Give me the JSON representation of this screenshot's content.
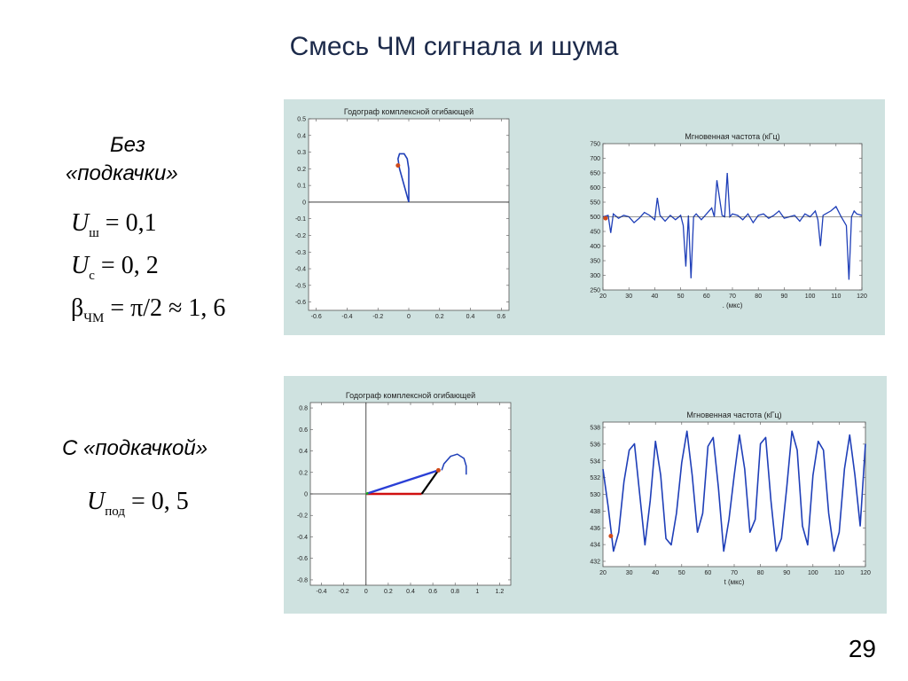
{
  "slide_title": "Смесь ЧМ сигнала и шума",
  "top_label_line1": "Без",
  "top_label_line2": "«подкачки»",
  "formula1": {
    "sym": "U",
    "sub": "ш",
    "rhs": "= 0,1"
  },
  "formula2": {
    "sym": "U",
    "sub": "с",
    "rhs": "= 0, 2"
  },
  "formula3": {
    "sym": "β",
    "sub": "ЧМ",
    "rhs": "= π/2 ≈ 1, 6"
  },
  "bottom_label": "С «подкачкой»",
  "formula4": {
    "sym": "U",
    "sub": "под",
    "rhs": "= 0, 5"
  },
  "page_number": "29",
  "colors": {
    "panel_bg": "#cfe2e0",
    "trace": "#1f3fb8",
    "marker": "#d04a1a",
    "vector_blue": "#2a3fd6",
    "vector_red": "#d01010",
    "vector_black": "#000000",
    "vector_green": "#18b018"
  },
  "chart_data": [
    {
      "type": "scatter",
      "title": "Годограф комплексной огибающей",
      "x_ticks": [
        "-0.6",
        "-0.4",
        "-0.2",
        "0",
        "0.2",
        "0.4",
        "0.6"
      ],
      "y_ticks": [
        "0.5",
        "0.4",
        "0.3",
        "0.2",
        "0.1",
        "0",
        "-0.1",
        "-0.2",
        "-0.3",
        "-0.4",
        "-0.5",
        "-0.6"
      ],
      "xlim": [
        -0.65,
        0.65
      ],
      "ylim": [
        -0.65,
        0.5
      ],
      "trajectory": [
        [
          0.0,
          0.0
        ],
        [
          -0.03,
          0.1
        ],
        [
          -0.06,
          0.2
        ],
        [
          -0.07,
          0.26
        ],
        [
          -0.06,
          0.29
        ],
        [
          -0.03,
          0.29
        ],
        [
          -0.01,
          0.26
        ],
        [
          0.0,
          0.2
        ],
        [
          0.0,
          0.12
        ],
        [
          0.0,
          0.0
        ]
      ],
      "marker": [
        -0.07,
        0.22
      ]
    },
    {
      "type": "line",
      "title": "Мгновенная частота (кГц)",
      "xlabel": ". (мкс)",
      "x_ticks": [
        "20",
        "30",
        "40",
        "50",
        "60",
        "70",
        "80",
        "90",
        "100",
        "110",
        "120"
      ],
      "y_ticks": [
        "750",
        "700",
        "650",
        "600",
        "550",
        "500",
        "450",
        "400",
        "350",
        "300",
        "250"
      ],
      "xlim": [
        20,
        120
      ],
      "ylim": [
        250,
        750
      ],
      "series": [
        {
          "x": [
            20,
            22,
            23,
            24,
            26,
            28,
            30,
            32,
            34,
            36,
            38,
            40,
            41,
            42,
            44,
            46,
            48,
            50,
            51,
            52,
            53,
            54,
            55,
            56,
            58,
            60,
            62,
            63,
            64,
            66,
            67,
            68,
            69,
            70,
            72,
            74,
            76,
            78,
            80,
            82,
            84,
            86,
            88,
            90,
            92,
            94,
            96,
            98,
            100,
            102,
            103,
            104,
            105,
            106,
            108,
            110,
            112,
            114,
            115,
            116,
            117,
            118,
            120
          ],
          "y": [
            500,
            505,
            445,
            510,
            495,
            505,
            500,
            480,
            495,
            515,
            505,
            490,
            565,
            505,
            485,
            505,
            490,
            505,
            470,
            330,
            505,
            290,
            500,
            510,
            490,
            510,
            530,
            500,
            625,
            505,
            500,
            650,
            500,
            510,
            505,
            490,
            510,
            480,
            505,
            510,
            495,
            505,
            520,
            495,
            500,
            505,
            485,
            510,
            500,
            520,
            490,
            400,
            505,
            510,
            520,
            535,
            500,
            470,
            285,
            500,
            520,
            510,
            505
          ]
        }
      ],
      "marker": [
        21,
        495
      ]
    },
    {
      "type": "scatter",
      "title": "Годограф комплексной огибающей",
      "x_ticks": [
        "-0.4",
        "-0.2",
        "0",
        "0.2",
        "0.4",
        "0.6",
        "0.8",
        "1",
        "1.2"
      ],
      "y_ticks": [
        "0.8",
        "0.6",
        "0.4",
        "0.2",
        "0",
        "-0.2",
        "-0.4",
        "-0.6",
        "-0.8"
      ],
      "xlim": [
        -0.5,
        1.3
      ],
      "ylim": [
        -0.85,
        0.85
      ],
      "trajectory": [
        [
          0.68,
          0.22
        ],
        [
          0.7,
          0.28
        ],
        [
          0.76,
          0.35
        ],
        [
          0.82,
          0.37
        ],
        [
          0.88,
          0.33
        ],
        [
          0.9,
          0.26
        ],
        [
          0.9,
          0.18
        ]
      ],
      "vectors": {
        "green": [
          [
            0,
            0
          ],
          [
            0.02,
            0.01
          ]
        ],
        "red": [
          [
            0,
            0
          ],
          [
            0.5,
            0
          ]
        ],
        "black": [
          [
            0.5,
            0
          ],
          [
            0.65,
            0.22
          ]
        ],
        "blue": [
          [
            0,
            0
          ],
          [
            0.65,
            0.22
          ]
        ]
      },
      "marker": [
        0.65,
        0.22
      ]
    },
    {
      "type": "line",
      "title": "Мгновенная частота (кГц)",
      "xlabel": "t (мкс)",
      "x_ticks": [
        "20",
        "30",
        "40",
        "50",
        "60",
        "70",
        "80",
        "90",
        "100",
        "110",
        "120"
      ],
      "y_ticks": [
        "538",
        "536",
        "534",
        "532",
        "530",
        "438",
        "436",
        "434",
        "432"
      ],
      "ylim": [
        432,
        538
      ],
      "series": [
        {
          "x": [
            20,
            22,
            24,
            26,
            28,
            30,
            32,
            34,
            36,
            38,
            40,
            42,
            44,
            46,
            48,
            50,
            52,
            54,
            56,
            58,
            60,
            62,
            64,
            66,
            68,
            70,
            72,
            74,
            76,
            78,
            80,
            82,
            84,
            86,
            88,
            90,
            92,
            94,
            96,
            98,
            100,
            102,
            104,
            106,
            108,
            110,
            112,
            114,
            116,
            118,
            120
          ],
          "y": [
            505,
            475,
            440,
            455,
            495,
            520,
            525,
            485,
            445,
            480,
            527,
            500,
            450,
            445,
            470,
            510,
            535,
            500,
            455,
            470,
            523,
            530,
            490,
            440,
            465,
            500,
            532,
            505,
            455,
            465,
            525,
            530,
            480,
            440,
            450,
            490,
            535,
            520,
            460,
            445,
            500,
            527,
            520,
            470,
            440,
            455,
            505,
            532,
            500,
            460,
            525
          ]
        }
      ],
      "marker": [
        23,
        452
      ]
    }
  ]
}
